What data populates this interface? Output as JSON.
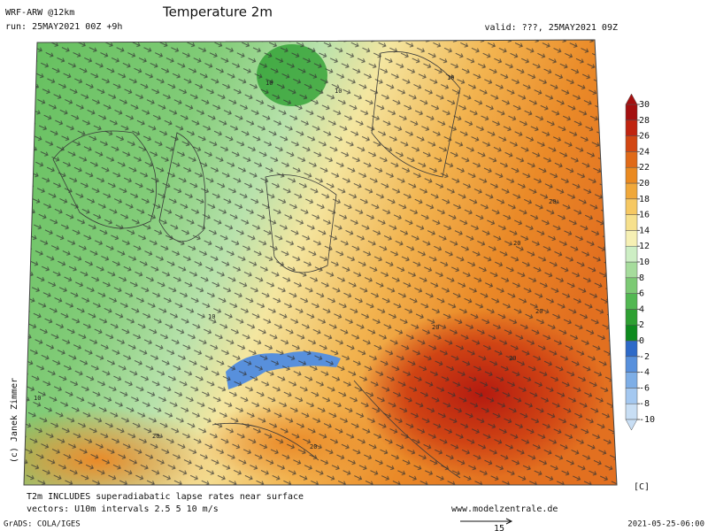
{
  "header": {
    "model": "WRF-ARW @12km",
    "run": "run: 25MAY2021 00Z +9h",
    "title": "Temperature 2m",
    "valid": "valid: ???, 25MAY2021 09Z"
  },
  "colorbar": {
    "levels": [
      -10,
      -8,
      -6,
      -4,
      -2,
      0,
      2,
      4,
      6,
      8,
      10,
      12,
      14,
      16,
      18,
      20,
      22,
      24,
      26,
      28,
      30
    ],
    "colors": [
      "#c8def4",
      "#a4c8f0",
      "#7eaee6",
      "#5890dc",
      "#2e6ac8",
      "#0e8a1e",
      "#2ea032",
      "#52b852",
      "#7cca74",
      "#a6dc9c",
      "#cdeec4",
      "#f6f0b4",
      "#f6e08c",
      "#f6c862",
      "#f0a83a",
      "#ea8a20",
      "#e06a18",
      "#d24612",
      "#c02410",
      "#a41010"
    ],
    "unit": "[C]"
  },
  "credit": "(c) Janek Zimmer",
  "map_labels": [
    "10",
    "10",
    "10",
    "10",
    "10",
    "20",
    "20",
    "20",
    "20",
    "20",
    "20",
    "20"
  ],
  "footer": {
    "note1": "T2m INCLUDES superadiabatic lapse rates near surface",
    "note2": "vectors: U10m intervals 2.5 5 10 m/s",
    "site": "www.modelzentrale.de",
    "grads": "GrADS: COLA/IGES",
    "vector_ref": "15",
    "timestamp": "2021-05-25-06:00"
  }
}
